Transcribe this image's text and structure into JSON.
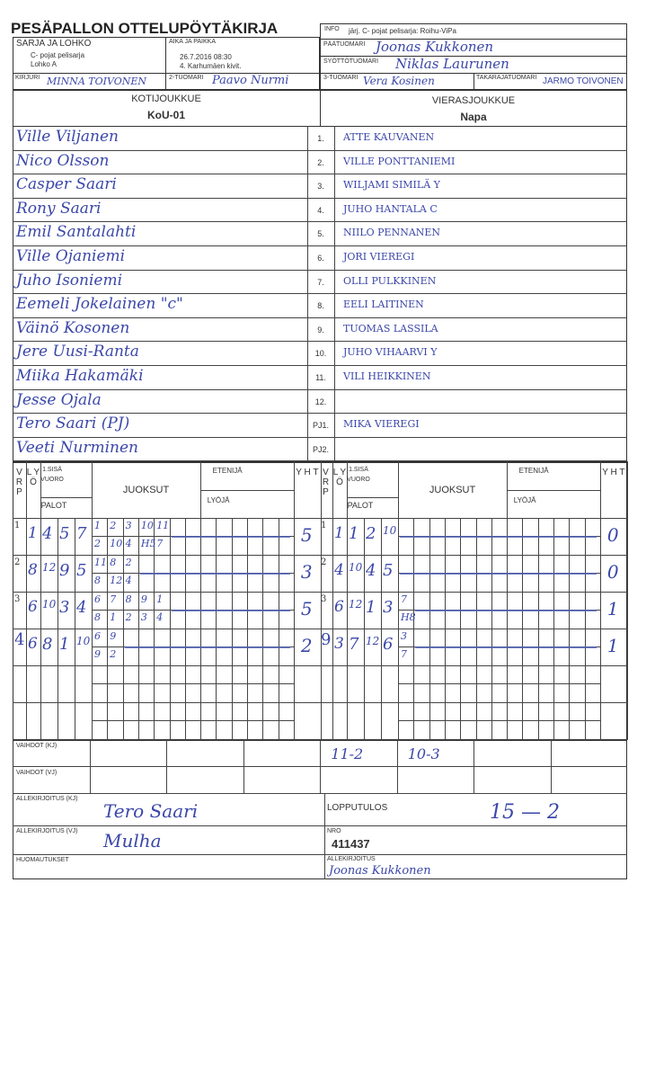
{
  "title": "PESÄPALLON OTTELUPÖYTÄKIRJA",
  "header": {
    "info_label": "INFO",
    "info_value": "järj. C- pojat pelisarja: Roihu-ViPa",
    "sarja_label": "SARJA JA LOHKO",
    "sarja_value": "C- pojat pelisarja",
    "lohko_value": "Lohko A",
    "aika_label": "AIKA JA PAIKKA",
    "aika_value": "26.7.2016 08:30",
    "paikka_value": "4. Karhumäen kivit.",
    "paatuomari_label": "PÄÄTUOMARI",
    "paatuomari_value": "Joonas Kukkonen",
    "syottotuomari_label": "SYÖTTÖTUOMARI",
    "syottotuomari_value": "Niklas Laurunen",
    "kirjuri_label": "KIRJURI",
    "kirjuri_value": "MINNA TOIVONEN",
    "tuomari2_label": "2-TUOMARI",
    "tuomari2_value": "Paavo Nurmi",
    "tuomari3_label": "3-TUOMARI",
    "tuomari3_value": "Vera Kosinen",
    "takaraja_label": "TAKARAJATUOMARI",
    "takaraja_value": "JARMO TOIVONEN"
  },
  "home": {
    "label": "KOTIJOUKKUE",
    "name": "KoU-01",
    "players": [
      "Ville Viljanen",
      "Nico Olsson",
      "Casper Saari",
      "Rony Saari",
      "Emil Santalahti",
      "Ville Ojaniemi",
      "Juho Isoniemi",
      "Eemeli Jokelainen \"c\"",
      "Väinö Kosonen",
      "Jere Uusi-Ranta",
      "Miika Hakamäki",
      "Jesse Ojala",
      "Tero Saari (PJ)",
      "Veeti Nurminen"
    ]
  },
  "away": {
    "label": "VIERASJOUKKUE",
    "name": "Napa",
    "players": [
      "ATTE KAUVANEN",
      "VILLE PONTTANIEMI",
      "WILJAMI SIMILÄ    Y",
      "JUHO HANTALA    C",
      "NIILO PENNANEN",
      "JORI VIEREGI",
      "OLLI PULKKINEN",
      "EELI LAITINEN",
      "TUOMAS LASSILA",
      "JUHO VIHAARVI         Y",
      "VILI HEIKKINEN",
      "",
      "MIKA VIEREGI",
      ""
    ]
  },
  "numbers": [
    "1.",
    "2.",
    "3.",
    "4.",
    "5.",
    "6.",
    "7.",
    "8.",
    "9.",
    "10.",
    "11.",
    "12.",
    "PJ1.",
    "PJ2."
  ],
  "score_header": {
    "vrp": "V R P",
    "lyo": "L Y Ö",
    "sisa": "1.SISÄ",
    "vuoro": "VUORO",
    "palot": "PALOT",
    "juoksut": "JUOKSUT",
    "etenija": "ETENIJÄ",
    "lyoja": "LYÖJÄ",
    "yht": "Y H T"
  },
  "home_innings": [
    {
      "vrp": "1",
      "lyo": "1",
      "palot": [
        "4",
        "5",
        "7"
      ],
      "top": [
        "1",
        "2",
        "3",
        "10",
        "11"
      ],
      "bottom": [
        "2",
        "10",
        "4",
        "H5",
        "7"
      ],
      "yht": "5"
    },
    {
      "vrp": "2",
      "lyo": "8",
      "palot": [
        "12",
        "9",
        "5"
      ],
      "top": [
        "11",
        "8",
        "2"
      ],
      "bottom": [
        "8",
        "12",
        "4"
      ],
      "yht": "3"
    },
    {
      "vrp": "3",
      "lyo": "6",
      "palot": [
        "10",
        "3",
        "4"
      ],
      "top": [
        "6",
        "7",
        "8",
        "9",
        "1"
      ],
      "bottom": [
        "8",
        "1",
        "2",
        "3",
        "4"
      ],
      "yht": "5"
    },
    {
      "vrp": "4",
      "lyo": "6",
      "palot": [
        "8",
        "1",
        "10"
      ],
      "top": [
        "6",
        "9"
      ],
      "bottom": [
        "9",
        "2"
      ],
      "yht": "2"
    }
  ],
  "away_innings": [
    {
      "vrp": "1",
      "lyo": "1",
      "palot": [
        "1",
        "2",
        "10"
      ],
      "top": [],
      "bottom": [],
      "yht": "0"
    },
    {
      "vrp": "2",
      "lyo": "4",
      "palot": [
        "10",
        "4",
        "5"
      ],
      "top": [],
      "bottom": [],
      "yht": "0"
    },
    {
      "vrp": "3",
      "lyo": "6",
      "palot": [
        "12",
        "1",
        "3"
      ],
      "top": [
        "7"
      ],
      "bottom": [
        "H8"
      ],
      "yht": "1"
    },
    {
      "vrp": "9",
      "lyo": "3",
      "palot": [
        "7",
        "12",
        "6"
      ],
      "top": [
        "3"
      ],
      "bottom": [
        "7"
      ],
      "yht": "1"
    }
  ],
  "footer": {
    "vaihdot_kj_label": "VAIHDOT (KJ)",
    "vaihdot_vj_label": "VAIHDOT (VJ)",
    "vaihdot_kj": [
      "",
      "",
      "",
      "11-2",
      "10-3",
      "",
      ""
    ],
    "allekirjoitus_kj_label": "ALLEKIRJOITUS (KJ)",
    "allekirjoitus_kj": "Tero Saari",
    "allekirjoitus_vj_label": "ALLEKIRJOITUS (VJ)",
    "allekirjoitus_vj": "Mulha",
    "lopputulos_label": "LOPPUTULOS",
    "lopputulos": "15 — 2",
    "nro_label": "NRO",
    "nro": "411437",
    "huomautukset_label": "HUOMAUTUKSET",
    "allekirjoitus_label": "ALLEKIRJOITUS",
    "allekirjoitus": "Joonas Kukkonen"
  },
  "colors": {
    "ink": "#3b47a8",
    "print": "#333333"
  }
}
